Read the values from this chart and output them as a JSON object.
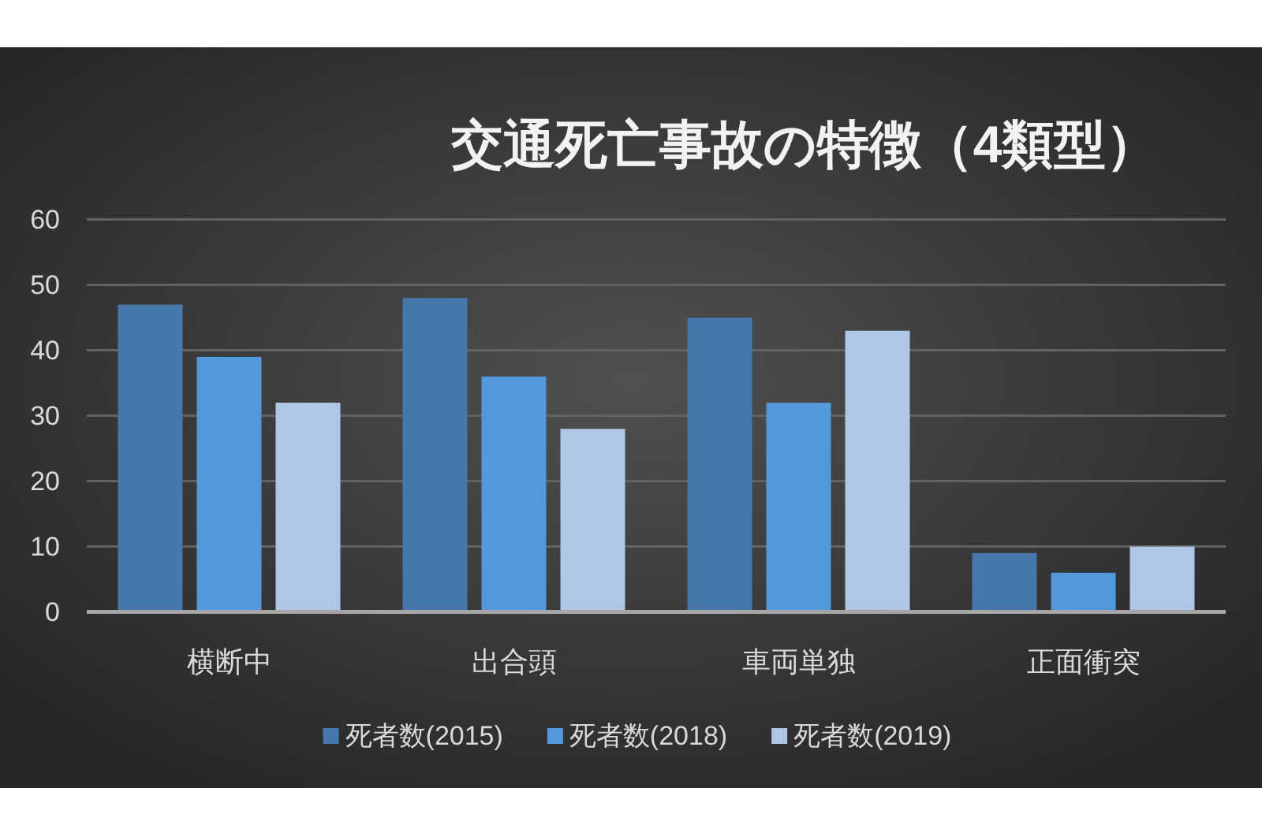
{
  "chart_data": {
    "type": "bar",
    "title": "交通死亡事故の特徴（4類型）",
    "categories": [
      "横断中",
      "出合頭",
      "車両単独",
      "正面衝突"
    ],
    "series": [
      {
        "name": "死者数(2015)",
        "color": "#4677ad",
        "values": [
          47,
          48,
          45,
          9
        ]
      },
      {
        "name": "死者数(2018)",
        "color": "#5199db",
        "values": [
          39,
          36,
          32,
          6
        ]
      },
      {
        "name": "死者数(2019)",
        "color": "#afc6e6",
        "values": [
          32,
          28,
          43,
          10
        ]
      }
    ],
    "ylim": [
      0,
      60
    ],
    "yticks": [
      0,
      10,
      20,
      30,
      40,
      50,
      60
    ],
    "grid": "y",
    "legend": "bottom"
  }
}
